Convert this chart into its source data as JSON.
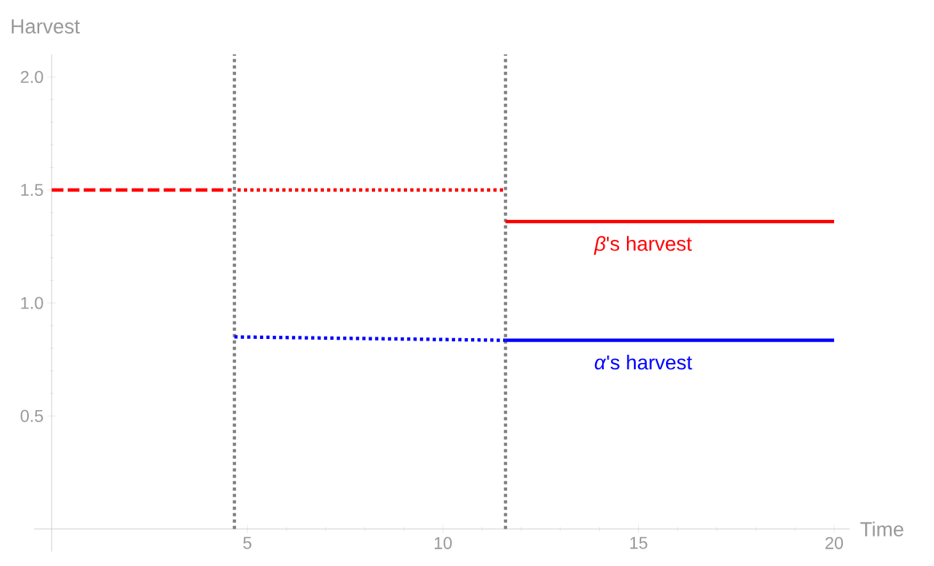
{
  "chart_data": {
    "type": "line",
    "xlabel": "Time",
    "ylabel": "Harvest",
    "xlim": [
      -0.45,
      20.4
    ],
    "ylim": [
      -0.1,
      2.1
    ],
    "xticks": [
      5,
      10,
      15,
      20
    ],
    "yticks": [
      0.5,
      {
        "value": 1,
        "label": "1.0"
      },
      1.5,
      {
        "value": 2,
        "label": "2.0"
      }
    ],
    "series": [
      {
        "color": "#ff0000",
        "line_style": "dashed",
        "x": [
          0,
          4.6
        ],
        "values": [
          1.5,
          1.5
        ]
      },
      {
        "color": "#ff0000",
        "line_style": "dotted",
        "x": [
          4.75,
          11.6
        ],
        "values": [
          1.5,
          1.5
        ]
      },
      {
        "name": "*β*'s harvest",
        "color": "#ff0000",
        "line_style": "solid",
        "x": [
          11.6,
          20
        ],
        "values": [
          1.36,
          1.36
        ]
      },
      {
        "color": "#0000ff",
        "line_style": "dotted",
        "x": [
          4.67,
          11.6
        ],
        "values": [
          0.85,
          0.835
        ]
      },
      {
        "name": "*α*'s harvest",
        "color": "#0000ff",
        "line_style": "solid",
        "x": [
          11.6,
          20
        ],
        "values": [
          0.835,
          0.835
        ]
      }
    ],
    "ref_lines": [
      {
        "axis": "x",
        "value": 4.67,
        "color": "#808080",
        "line_style": "dotted"
      },
      {
        "axis": "x",
        "value": 11.6,
        "color": "#808080",
        "line_style": "dotted"
      }
    ],
    "legend": false,
    "grid": false
  }
}
